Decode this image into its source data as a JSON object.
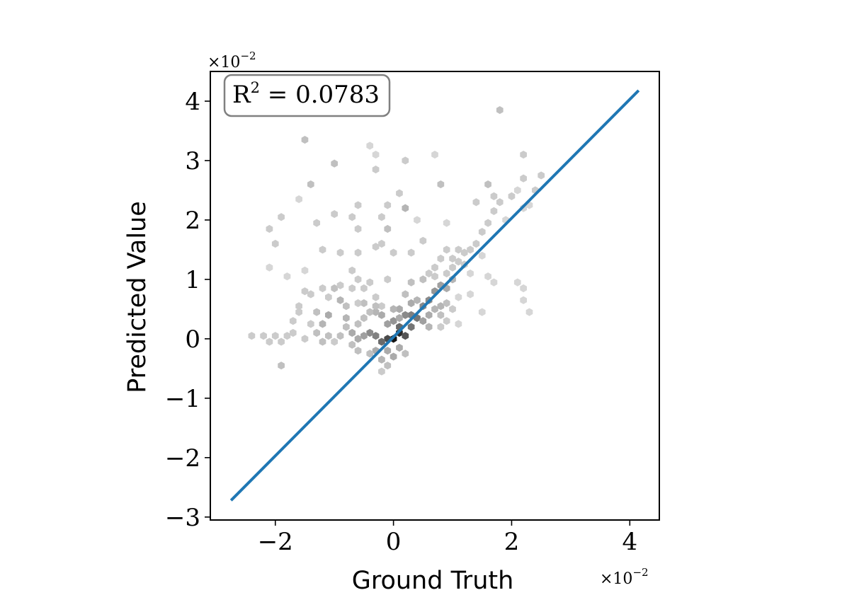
{
  "chart_data": {
    "type": "hexbin",
    "xlabel": "Ground Truth",
    "ylabel": "Predicted Value",
    "x_scale_label": "×10",
    "x_scale_exp": "−2",
    "y_scale_label": "×10",
    "y_scale_exp": "−2",
    "xlim": [
      -3.1,
      4.5
    ],
    "ylim": [
      -3.05,
      4.5
    ],
    "xticks": [
      -2,
      0,
      2,
      4
    ],
    "xtick_labels": [
      "−2",
      "0",
      "2",
      "4"
    ],
    "yticks": [
      -3,
      -2,
      -1,
      0,
      1,
      2,
      3,
      4
    ],
    "ytick_labels": [
      "−3",
      "−2",
      "−1",
      "0",
      "1",
      "2",
      "3",
      "4"
    ],
    "annotation": {
      "prefix": "R",
      "sup": "2",
      "suffix": " = 0.0783"
    },
    "fit_line": {
      "x": [
        -2.75,
        4.15
      ],
      "y": [
        -2.72,
        4.18
      ],
      "color": "#1f77b4"
    },
    "hexbins": [
      [
        0.0,
        0.0,
        1.0
      ],
      [
        0.1,
        0.1,
        0.9
      ],
      [
        -0.1,
        0.0,
        0.75
      ],
      [
        0.2,
        0.05,
        0.7
      ],
      [
        -0.2,
        -0.05,
        0.6
      ],
      [
        0.1,
        0.2,
        0.6
      ],
      [
        0.3,
        0.2,
        0.55
      ],
      [
        0.4,
        0.35,
        0.55
      ],
      [
        0.3,
        0.4,
        0.5
      ],
      [
        -0.3,
        0.05,
        0.5
      ],
      [
        0.2,
        0.4,
        0.45
      ],
      [
        -0.4,
        0.1,
        0.45
      ],
      [
        0.5,
        0.55,
        0.45
      ],
      [
        0.6,
        0.65,
        0.45
      ],
      [
        0.0,
        0.3,
        0.4
      ],
      [
        -0.1,
        0.25,
        0.35
      ],
      [
        -0.5,
        0.05,
        0.35
      ],
      [
        0.5,
        0.3,
        0.35
      ],
      [
        0.7,
        0.8,
        0.4
      ],
      [
        0.8,
        0.9,
        0.35
      ],
      [
        -0.6,
        0.0,
        0.3
      ],
      [
        -0.7,
        0.1,
        0.3
      ],
      [
        0.6,
        0.4,
        0.3
      ],
      [
        0.9,
        0.85,
        0.3
      ],
      [
        1.0,
        1.0,
        0.25
      ],
      [
        -0.2,
        0.4,
        0.3
      ],
      [
        -0.3,
        0.45,
        0.25
      ],
      [
        0.1,
        0.5,
        0.3
      ],
      [
        0.0,
        0.5,
        0.25
      ],
      [
        0.3,
        0.6,
        0.3
      ],
      [
        0.4,
        0.65,
        0.25
      ],
      [
        0.2,
        0.75,
        0.2
      ],
      [
        0.6,
        0.2,
        0.25
      ],
      [
        0.7,
        0.5,
        0.25
      ],
      [
        0.8,
        0.55,
        0.25
      ],
      [
        0.9,
        0.6,
        0.2
      ],
      [
        0.8,
        0.4,
        0.2
      ],
      [
        -0.1,
        -0.2,
        0.3
      ],
      [
        0.1,
        -0.15,
        0.3
      ],
      [
        -0.3,
        -0.2,
        0.3
      ],
      [
        0.0,
        -0.3,
        0.3
      ],
      [
        -0.2,
        -0.35,
        0.25
      ],
      [
        0.2,
        -0.25,
        0.2
      ],
      [
        -0.4,
        -0.25,
        0.2
      ],
      [
        -0.1,
        -0.45,
        0.2
      ],
      [
        -0.2,
        -0.55,
        0.15
      ],
      [
        -0.4,
        0.45,
        0.2
      ],
      [
        -0.5,
        0.35,
        0.2
      ],
      [
        -0.6,
        0.25,
        0.2
      ],
      [
        -0.8,
        0.2,
        0.2
      ],
      [
        -0.9,
        0.05,
        0.2
      ],
      [
        -1.0,
        -0.05,
        0.15
      ],
      [
        -0.8,
        0.35,
        0.25
      ],
      [
        -1.1,
        0.4,
        0.3
      ],
      [
        -1.2,
        0.25,
        0.25
      ],
      [
        -1.3,
        0.1,
        0.2
      ],
      [
        -1.4,
        0.25,
        0.15
      ],
      [
        -1.5,
        0.0,
        0.15
      ],
      [
        -1.3,
        0.45,
        0.2
      ],
      [
        -0.9,
        0.65,
        0.25
      ],
      [
        -1.0,
        0.85,
        0.2
      ],
      [
        -0.9,
        0.9,
        0.15
      ],
      [
        -0.7,
        0.85,
        0.15
      ],
      [
        -0.6,
        1.0,
        0.15
      ],
      [
        -0.5,
        0.85,
        0.15
      ],
      [
        -0.3,
        0.7,
        0.15
      ],
      [
        -0.4,
        0.95,
        0.15
      ],
      [
        -0.1,
        1.0,
        0.15
      ],
      [
        -0.2,
        0.55,
        0.15
      ],
      [
        -0.5,
        0.6,
        0.2
      ],
      [
        -0.6,
        0.6,
        0.15
      ],
      [
        -0.8,
        0.55,
        0.2
      ],
      [
        -1.1,
        0.7,
        0.15
      ],
      [
        -1.2,
        0.85,
        0.15
      ],
      [
        -1.4,
        0.75,
        0.15
      ],
      [
        -1.6,
        0.55,
        0.15
      ],
      [
        -1.5,
        0.8,
        0.15
      ],
      [
        -1.6,
        0.45,
        0.15
      ],
      [
        -1.7,
        0.3,
        0.15
      ],
      [
        -1.8,
        0.05,
        0.15
      ],
      [
        -2.0,
        0.05,
        0.15
      ],
      [
        -2.2,
        0.05,
        0.15
      ],
      [
        -2.4,
        0.05,
        0.15
      ],
      [
        -1.9,
        -0.05,
        0.15
      ],
      [
        -2.1,
        -0.05,
        0.15
      ],
      [
        -1.7,
        0.1,
        0.15
      ],
      [
        -1.1,
        0.05,
        0.2
      ],
      [
        -1.2,
        -0.05,
        0.2
      ],
      [
        -0.7,
        -0.1,
        0.2
      ],
      [
        -0.6,
        -0.2,
        0.2
      ],
      [
        -1.9,
        -0.45,
        0.2
      ],
      [
        -0.3,
        0.55,
        0.2
      ],
      [
        0.1,
        0.35,
        0.3
      ],
      [
        0.3,
        0.95,
        0.2
      ],
      [
        0.5,
        1.0,
        0.2
      ],
      [
        0.6,
        1.1,
        0.15
      ],
      [
        0.7,
        1.05,
        0.15
      ],
      [
        0.9,
        1.1,
        0.15
      ],
      [
        1.0,
        1.2,
        0.15
      ],
      [
        1.1,
        1.3,
        0.15
      ],
      [
        1.2,
        1.45,
        0.15
      ],
      [
        1.3,
        1.5,
        0.15
      ],
      [
        1.4,
        1.6,
        0.15
      ],
      [
        1.5,
        1.8,
        0.15
      ],
      [
        1.6,
        1.95,
        0.15
      ],
      [
        1.7,
        2.15,
        0.15
      ],
      [
        1.8,
        2.3,
        0.15
      ],
      [
        2.0,
        2.4,
        0.15
      ],
      [
        2.1,
        2.5,
        0.1
      ],
      [
        2.4,
        2.5,
        0.15
      ],
      [
        2.3,
        2.25,
        0.1
      ],
      [
        2.2,
        2.2,
        0.1
      ],
      [
        1.9,
        2.0,
        0.1
      ],
      [
        1.1,
        1.5,
        0.15
      ],
      [
        1.2,
        1.25,
        0.15
      ],
      [
        1.0,
        1.35,
        0.15
      ],
      [
        0.9,
        1.5,
        0.15
      ],
      [
        0.8,
        1.35,
        0.15
      ],
      [
        0.7,
        1.2,
        0.15
      ],
      [
        1.3,
        1.1,
        0.1
      ],
      [
        1.5,
        1.4,
        0.1
      ],
      [
        1.6,
        1.05,
        0.1
      ],
      [
        0.8,
        0.2,
        0.15
      ],
      [
        0.9,
        0.3,
        0.15
      ],
      [
        1.0,
        0.5,
        0.15
      ],
      [
        1.1,
        0.7,
        0.1
      ],
      [
        1.3,
        0.75,
        0.1
      ],
      [
        1.1,
        0.25,
        0.1
      ],
      [
        1.5,
        0.45,
        0.1
      ],
      [
        1.7,
        0.95,
        0.1
      ],
      [
        2.1,
        0.95,
        0.1
      ],
      [
        2.2,
        0.65,
        0.1
      ],
      [
        2.3,
        0.45,
        0.1
      ],
      [
        2.2,
        0.85,
        0.1
      ],
      [
        -0.6,
        1.45,
        0.15
      ],
      [
        -0.9,
        1.45,
        0.15
      ],
      [
        -1.2,
        1.5,
        0.15
      ],
      [
        -0.3,
        1.55,
        0.15
      ],
      [
        0.0,
        1.45,
        0.15
      ],
      [
        0.3,
        1.45,
        0.15
      ],
      [
        0.5,
        1.65,
        0.15
      ],
      [
        -0.7,
        1.15,
        0.15
      ],
      [
        -1.5,
        1.15,
        0.1
      ],
      [
        -1.8,
        1.05,
        0.1
      ],
      [
        -2.1,
        1.2,
        0.1
      ],
      [
        -2.0,
        1.6,
        0.15
      ],
      [
        -1.9,
        2.05,
        0.15
      ],
      [
        -2.1,
        1.85,
        0.15
      ],
      [
        -0.6,
        1.85,
        0.15
      ],
      [
        -0.7,
        2.05,
        0.15
      ],
      [
        -0.2,
        2.05,
        0.15
      ],
      [
        -0.1,
        1.85,
        0.2
      ],
      [
        -0.2,
        1.6,
        0.15
      ],
      [
        0.2,
        2.2,
        0.25
      ],
      [
        -0.1,
        2.25,
        0.15
      ],
      [
        -1.0,
        2.1,
        0.15
      ],
      [
        -1.3,
        1.95,
        0.15
      ],
      [
        -0.6,
        2.25,
        0.15
      ],
      [
        -1.6,
        2.35,
        0.1
      ],
      [
        0.1,
        2.45,
        0.15
      ],
      [
        -1.4,
        2.6,
        0.2
      ],
      [
        -1.0,
        2.95,
        0.2
      ],
      [
        -0.3,
        2.85,
        0.15
      ],
      [
        0.2,
        3.0,
        0.15
      ],
      [
        0.7,
        3.1,
        0.1
      ],
      [
        0.8,
        2.6,
        0.2
      ],
      [
        1.6,
        2.6,
        0.2
      ],
      [
        1.7,
        2.4,
        0.15
      ],
      [
        2.2,
        2.7,
        0.15
      ],
      [
        2.5,
        2.75,
        0.15
      ],
      [
        2.2,
        3.1,
        0.15
      ],
      [
        -1.5,
        3.35,
        0.2
      ],
      [
        -0.4,
        3.25,
        0.1
      ],
      [
        -0.3,
        3.1,
        0.1
      ],
      [
        1.8,
        3.85,
        0.2
      ],
      [
        1.4,
        2.3,
        0.15
      ],
      [
        0.9,
        1.95,
        0.1
      ],
      [
        0.4,
        2.0,
        0.1
      ]
    ]
  }
}
